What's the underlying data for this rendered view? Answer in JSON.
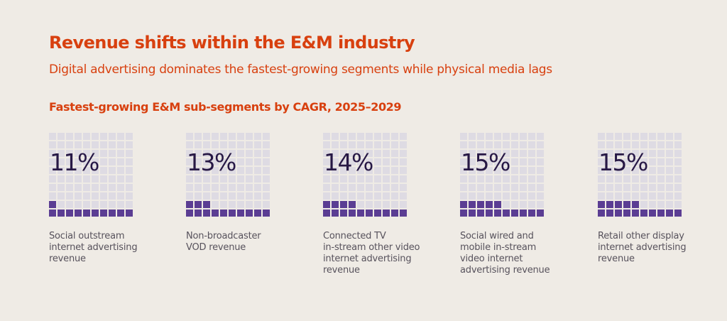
{
  "header": {
    "title": "Revenue shifts within the E&M industry",
    "subtitle": "Digital advertising dominates the fastest-growing segments while physical media lags",
    "section_title": "Fastest-growing E&M sub-segments by CAGR, 2025–2029"
  },
  "colors": {
    "background": "#efebe5",
    "accent": "#d8400f",
    "filled_cell": "#5b3d93",
    "empty_cell": "#dedbe3",
    "percent_text": "#271845",
    "label_text": "#57525c"
  },
  "panels": [
    {
      "percent_label": "11%",
      "value": 11,
      "label": "Social outstream\ninternet advertising\nrevenue"
    },
    {
      "percent_label": "13%",
      "value": 13,
      "label": "Non-broadcaster\nVOD revenue"
    },
    {
      "percent_label": "14%",
      "value": 14,
      "label": "Connected TV\nin-stream other video\ninternet advertising\nrevenue"
    },
    {
      "percent_label": "15%",
      "value": 15,
      "label": "Social wired and\nmobile in-stream\nvideo internet\nadvertising revenue"
    },
    {
      "percent_label": "15%",
      "value": 15,
      "label": "Retail other display\ninternet advertising\nrevenue"
    }
  ],
  "chart_data": {
    "type": "waffle",
    "title": "Fastest-growing E&M sub-segments by CAGR, 2025–2029",
    "subtitle": "Digital advertising dominates the fastest-growing segments while physical media lags",
    "grid": {
      "rows": 10,
      "cols": 10,
      "fill_from": "bottom-left"
    },
    "categories": [
      "Social outstream internet advertising revenue",
      "Non-broadcaster VOD revenue",
      "Connected TV in-stream other video internet advertising revenue",
      "Social wired and mobile in-stream video internet advertising revenue",
      "Retail other display internet advertising revenue"
    ],
    "values": [
      11,
      13,
      14,
      15,
      15
    ],
    "unit": "% CAGR",
    "xlabel": "",
    "ylabel": ""
  }
}
